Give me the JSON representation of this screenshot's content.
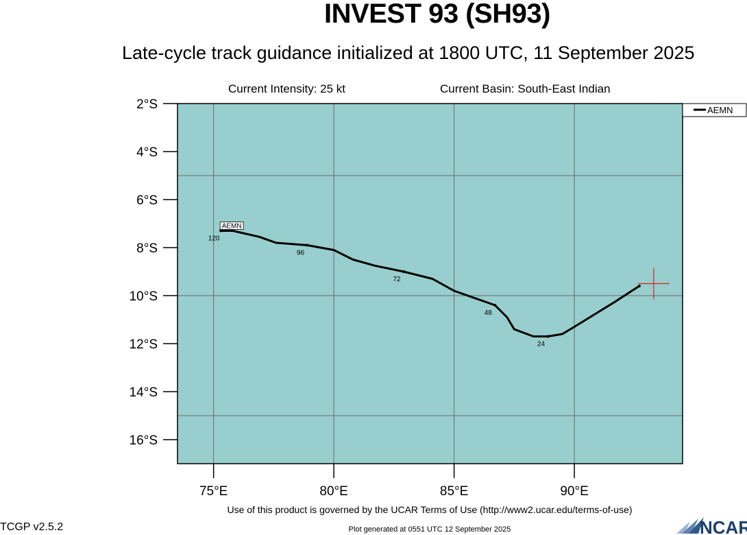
{
  "header": {
    "title": "INVEST 93 (SH93)",
    "subtitle": "Late-cycle track guidance initialized at 1800 UTC, 11 September 2025",
    "intensity": "Current Intensity: 25 kt",
    "basin": "Current Basin: South-East Indian"
  },
  "footer": {
    "terms": "Use of this product is governed by the UCAR Terms of Use (http://www2.ucar.edu/terms-of-use)",
    "generated": "Plot generated at 0551 UTC   12 September 2025",
    "version": "TCGP v2.5.2",
    "logo_text": "NCAR"
  },
  "colors": {
    "ocean": "#98CECE",
    "grid": "#6b6b6b",
    "track": "#000000",
    "current_position": "#d92020"
  },
  "chart_data": {
    "type": "line",
    "xlabel": "",
    "ylabel": "",
    "xlim": [
      73.5,
      94.5
    ],
    "ylim": [
      -17,
      -2
    ],
    "x_ticks": [
      75,
      80,
      85,
      90
    ],
    "x_tick_labels": [
      "75°E",
      "80°E",
      "85°E",
      "90°E"
    ],
    "y_ticks": [
      -2,
      -4,
      -6,
      -8,
      -10,
      -12,
      -14,
      -16
    ],
    "y_tick_labels": [
      "2°S",
      "4°S",
      "6°S",
      "8°S",
      "10°S",
      "12°S",
      "14°S",
      "16°S"
    ],
    "gridlines_x": [
      75,
      80,
      85,
      90
    ],
    "gridlines_y": [
      -5,
      -10,
      -15
    ],
    "legend": {
      "position": "top-right",
      "entries": [
        "AEMN"
      ]
    },
    "current_position": {
      "lon": 93.3,
      "lat": -9.5
    },
    "series": [
      {
        "name": "AEMN",
        "points": [
          {
            "lon": 92.7,
            "lat": -9.6,
            "hour": 0
          },
          {
            "lon": 91.7,
            "lat": -10.25
          },
          {
            "lon": 90.0,
            "lat": -11.3
          },
          {
            "lon": 89.5,
            "lat": -11.6
          },
          {
            "lon": 88.9,
            "lat": -11.7,
            "hour": 24
          },
          {
            "lon": 88.3,
            "lat": -11.7
          },
          {
            "lon": 87.5,
            "lat": -11.4
          },
          {
            "lon": 87.2,
            "lat": -10.9
          },
          {
            "lon": 86.7,
            "lat": -10.4,
            "hour": 48
          },
          {
            "lon": 85.0,
            "lat": -9.8
          },
          {
            "lon": 84.1,
            "lat": -9.3
          },
          {
            "lon": 82.9,
            "lat": -9.0,
            "hour": 72
          },
          {
            "lon": 81.7,
            "lat": -8.75
          },
          {
            "lon": 80.8,
            "lat": -8.5
          },
          {
            "lon": 80.0,
            "lat": -8.1
          },
          {
            "lon": 78.9,
            "lat": -7.9,
            "hour": 96
          },
          {
            "lon": 77.6,
            "lat": -7.8
          },
          {
            "lon": 76.9,
            "lat": -7.55
          },
          {
            "lon": 75.8,
            "lat": -7.3
          },
          {
            "lon": 75.3,
            "lat": -7.3,
            "hour": 120
          }
        ],
        "hour_labels": [
          "24",
          "48",
          "72",
          "96",
          "120"
        ],
        "end_label": "AEMN"
      }
    ]
  }
}
